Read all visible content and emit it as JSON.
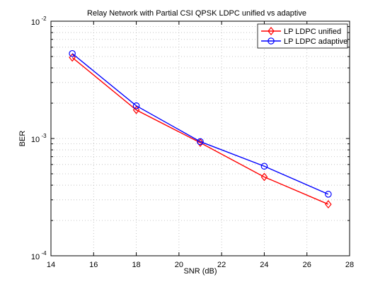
{
  "chart_data": {
    "type": "line",
    "title": "Relay Network with Partial CSI QPSK LDPC unified vs adaptive",
    "xlabel": "SNR (dB)",
    "ylabel": "BER",
    "xlim": [
      14,
      28
    ],
    "ylim": [
      0.0001,
      0.01
    ],
    "yscale": "log",
    "grid": true,
    "legend_position": "top-right",
    "x_ticks": [
      "14",
      "16",
      "18",
      "20",
      "22",
      "24",
      "26",
      "28"
    ],
    "y_ticks": [
      {
        "base": "10",
        "exp": "-4"
      },
      {
        "base": "10",
        "exp": "-3"
      },
      {
        "base": "10",
        "exp": "-2"
      }
    ],
    "x": [
      15,
      18,
      21,
      24,
      27
    ],
    "series": [
      {
        "name": "LP LDPC unified",
        "color": "#ff0000",
        "marker": "diamond",
        "values": [
          0.0049,
          0.00175,
          0.00092,
          0.00047,
          0.000275
        ]
      },
      {
        "name": "LP LDPC adaptive",
        "color": "#0000ff",
        "marker": "circle",
        "values": [
          0.0053,
          0.0019,
          0.00094,
          0.00058,
          0.000335
        ]
      }
    ]
  }
}
